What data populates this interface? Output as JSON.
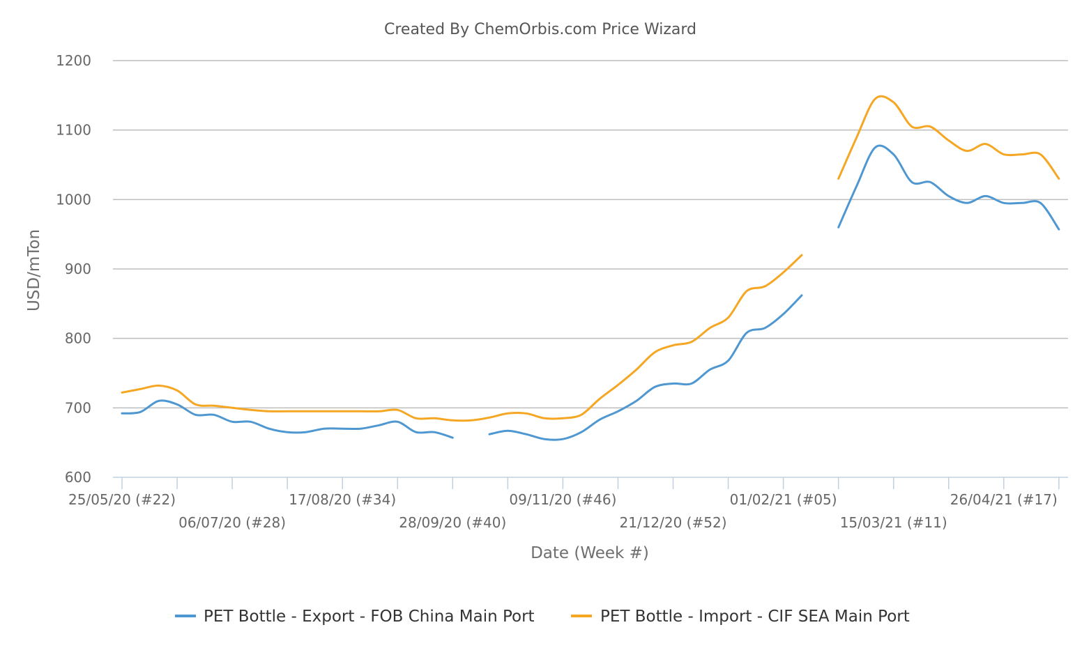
{
  "chart_data": {
    "type": "line",
    "title": "Created By ChemOrbis.com Price Wizard",
    "xlabel": "Date (Week #)",
    "ylabel": "USD/mTon",
    "ylim": [
      600,
      1200
    ],
    "yticks": [
      600,
      700,
      800,
      900,
      1000,
      1100,
      1200
    ],
    "x_week_range": [
      22,
      70
    ],
    "x_tick_labels": [
      {
        "label": "25/05/20 (#22)",
        "week": 22,
        "row": 1
      },
      {
        "label": "06/07/20 (#28)",
        "week": 28,
        "row": 2
      },
      {
        "label": "17/08/20 (#34)",
        "week": 34,
        "row": 1
      },
      {
        "label": "28/09/20 (#40)",
        "week": 40,
        "row": 2
      },
      {
        "label": "09/11/20 (#46)",
        "week": 46,
        "row": 1
      },
      {
        "label": "21/12/20 (#52)",
        "week": 52,
        "row": 2
      },
      {
        "label": "01/02/21 (#05)",
        "week": 58,
        "row": 1
      },
      {
        "label": "15/03/21 (#11)",
        "week": 64,
        "row": 2
      },
      {
        "label": "26/04/21 (#17)",
        "week": 70,
        "row": 1
      }
    ],
    "grid": true,
    "legend_position": "bottom",
    "series": [
      {
        "name": "PET Bottle - Export - FOB China Main Port",
        "color": "#4e97d1",
        "segments": [
          [
            [
              22,
              692
            ],
            [
              23,
              694
            ],
            [
              24,
              710
            ],
            [
              25,
              705
            ],
            [
              26,
              690
            ],
            [
              27,
              690
            ],
            [
              28,
              680
            ],
            [
              29,
              680
            ],
            [
              30,
              670
            ],
            [
              31,
              665
            ],
            [
              32,
              665
            ],
            [
              33,
              670
            ],
            [
              34,
              670
            ],
            [
              35,
              670
            ],
            [
              36,
              675
            ],
            [
              37,
              680
            ],
            [
              38,
              665
            ],
            [
              39,
              665
            ],
            [
              40,
              657
            ]
          ],
          [
            [
              42,
              662
            ],
            [
              43,
              667
            ],
            [
              44,
              662
            ],
            [
              45,
              655
            ],
            [
              46,
              655
            ],
            [
              47,
              665
            ],
            [
              48,
              683
            ],
            [
              49,
              695
            ],
            [
              50,
              710
            ],
            [
              51,
              730
            ],
            [
              52,
              735
            ],
            [
              53,
              735
            ],
            [
              54,
              755
            ],
            [
              55,
              768
            ],
            [
              56,
              808
            ],
            [
              57,
              815
            ],
            [
              58,
              835
            ],
            [
              59,
              862
            ]
          ],
          [
            [
              61,
              960
            ],
            [
              62,
              1020
            ],
            [
              63,
              1075
            ],
            [
              64,
              1065
            ],
            [
              65,
              1025
            ],
            [
              66,
              1025
            ],
            [
              67,
              1005
            ],
            [
              68,
              995
            ],
            [
              69,
              1005
            ],
            [
              70,
              995
            ],
            [
              71,
              995
            ],
            [
              72,
              995
            ],
            [
              73,
              957
            ]
          ]
        ]
      },
      {
        "name": "PET Bottle - Import - CIF SEA Main Port",
        "color": "#f5a623",
        "segments": [
          [
            [
              22,
              722
            ],
            [
              23,
              727
            ],
            [
              24,
              732
            ],
            [
              25,
              725
            ],
            [
              26,
              705
            ],
            [
              27,
              703
            ],
            [
              28,
              700
            ],
            [
              29,
              697
            ],
            [
              30,
              695
            ],
            [
              31,
              695
            ],
            [
              32,
              695
            ],
            [
              33,
              695
            ],
            [
              34,
              695
            ],
            [
              35,
              695
            ],
            [
              36,
              695
            ],
            [
              37,
              697
            ],
            [
              38,
              685
            ],
            [
              39,
              685
            ],
            [
              40,
              682
            ],
            [
              41,
              682
            ],
            [
              42,
              686
            ],
            [
              43,
              692
            ],
            [
              44,
              692
            ],
            [
              45,
              685
            ],
            [
              46,
              685
            ],
            [
              47,
              690
            ],
            [
              48,
              713
            ],
            [
              49,
              733
            ],
            [
              50,
              755
            ],
            [
              51,
              780
            ],
            [
              52,
              790
            ],
            [
              53,
              795
            ],
            [
              54,
              815
            ],
            [
              55,
              830
            ],
            [
              56,
              868
            ],
            [
              57,
              875
            ],
            [
              58,
              895
            ],
            [
              59,
              920
            ]
          ],
          [
            [
              61,
              1030
            ],
            [
              62,
              1090
            ],
            [
              63,
              1145
            ],
            [
              64,
              1140
            ],
            [
              65,
              1105
            ],
            [
              66,
              1105
            ],
            [
              67,
              1085
            ],
            [
              68,
              1070
            ],
            [
              69,
              1080
            ],
            [
              70,
              1065
            ],
            [
              71,
              1065
            ],
            [
              72,
              1065
            ],
            [
              73,
              1030
            ]
          ]
        ]
      }
    ]
  }
}
